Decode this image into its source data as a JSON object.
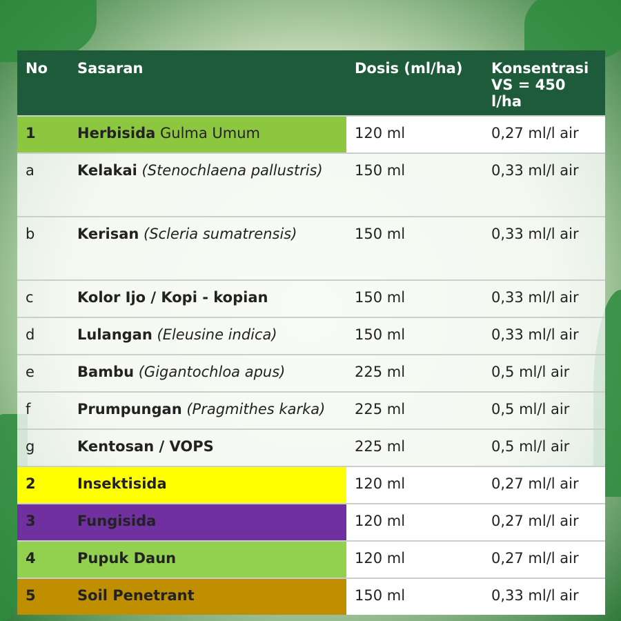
{
  "table": {
    "header": {
      "no": "No",
      "target": "Sasaran",
      "dose": "Dosis (ml/ha)",
      "concentration": [
        "Konsentrasi",
        "VS = 450 l/ha"
      ]
    },
    "rows": [
      {
        "no": "1",
        "name": "Herbisida",
        "detail": "Gulma Umum",
        "italic": false,
        "dose": "120 ml",
        "concentration": "0,27 ml/l air",
        "color": "#8dc63f"
      },
      {
        "no": "a",
        "name": "Kelakai",
        "detail": "(Stenochlaena pallustris)",
        "italic": true,
        "dose": "150 ml",
        "concentration": "0,33 ml/l air",
        "tall": true
      },
      {
        "no": "b",
        "name": "Kerisan",
        "detail": "(Scleria sumatrensis)",
        "italic": true,
        "dose": "150 ml",
        "concentration": "0,33 ml/l air",
        "tall": true
      },
      {
        "no": "c",
        "name": "Kolor Ijo / Kopi - kopian",
        "dose": "150 ml",
        "concentration": "0,33 ml/l air"
      },
      {
        "no": "d",
        "name": "Lulangan",
        "detail": "(Eleusine indica)",
        "italic": true,
        "dose": "150 ml",
        "concentration": "0,33 ml/l air"
      },
      {
        "no": "e",
        "name": "Bambu",
        "detail": "(Gigantochloa apus)",
        "italic": true,
        "dose": "225 ml",
        "concentration": "0,5 ml/l air"
      },
      {
        "no": "f",
        "name": "Prumpungan",
        "detail": "(Pragmithes karka)",
        "italic": true,
        "dose": "225 ml",
        "concentration": "0,5 ml/l air"
      },
      {
        "no": "g",
        "name": "Kentosan / VOPS",
        "dose": "225 ml",
        "concentration": "0,5 ml/l air"
      },
      {
        "no": "2",
        "name": "Insektisida",
        "dose": "120 ml",
        "concentration": "0,27 ml/l air",
        "color": "#ffff00"
      },
      {
        "no": "3",
        "name": "Fungisida",
        "dose": "120 ml",
        "concentration": "0,27 ml/l air",
        "color": "#7030a0"
      },
      {
        "no": "4",
        "name": "Pupuk Daun",
        "dose": "120 ml",
        "concentration": "0,27 ml/l air",
        "color": "#92d050"
      },
      {
        "no": "5",
        "name": "Soil Penetrant",
        "dose": "150 ml",
        "concentration": "0,33 ml/l air",
        "color": "#bf8f00"
      }
    ]
  }
}
